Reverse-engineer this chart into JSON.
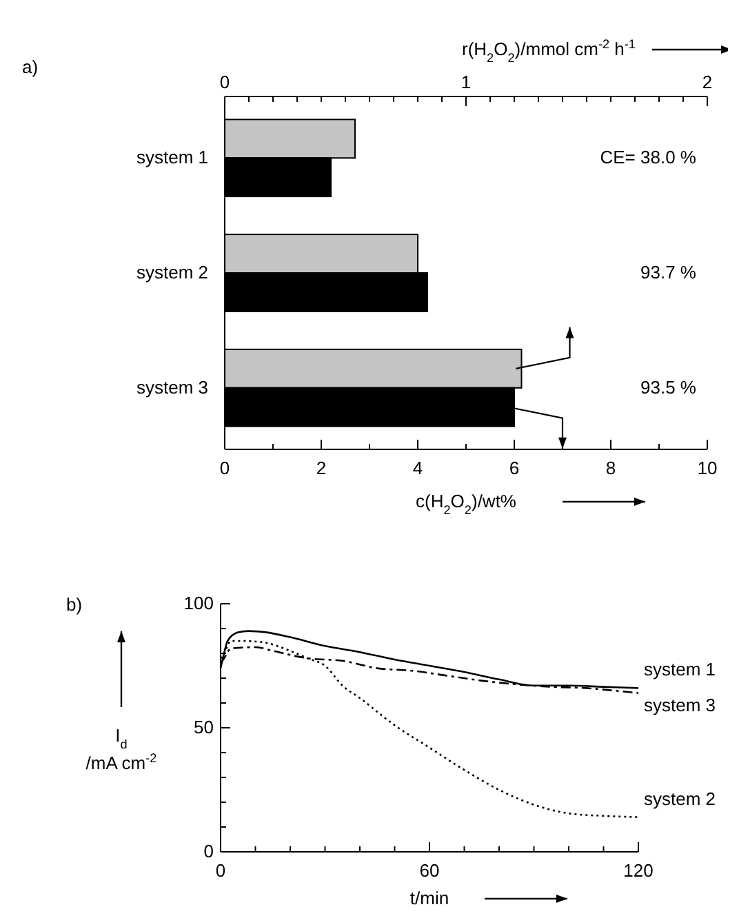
{
  "chart_data": [
    {
      "type": "bar",
      "orientation": "horizontal",
      "categories": [
        "system 1",
        "system 2",
        "system 3"
      ],
      "series": [
        {
          "color": "#c4c4c4",
          "axis": "x2",
          "values": [
            0.54,
            0.8,
            1.23
          ]
        },
        {
          "color": "#000000",
          "values": [
            2.2,
            4.2,
            6.0
          ]
        }
      ],
      "xlim": [
        0,
        10
      ],
      "xticks": [
        0,
        {
          "value": 1,
          "label": null
        },
        2,
        {
          "value": 3,
          "label": null
        },
        4,
        {
          "value": 5,
          "label": null
        },
        6,
        {
          "value": 7,
          "label": null
        },
        8,
        {
          "value": 9,
          "label": null
        },
        10
      ],
      "x2lim": [
        0,
        2
      ],
      "x2ticks": [
        0,
        {
          "value": 0.1,
          "label": null
        },
        {
          "value": 0.2,
          "label": null
        },
        {
          "value": 0.3,
          "label": null
        },
        {
          "value": 0.4,
          "label": null
        },
        {
          "value": 0.5,
          "label": null
        },
        {
          "value": 0.6,
          "label": null
        },
        {
          "value": 0.7,
          "label": null
        },
        {
          "value": 0.8,
          "label": null
        },
        {
          "value": 0.9,
          "label": null
        },
        1,
        {
          "value": 1.1,
          "label": null
        },
        {
          "value": 1.2,
          "label": null
        },
        {
          "value": 1.3,
          "label": null
        },
        {
          "value": 1.4,
          "label": null
        },
        {
          "value": 1.5,
          "label": null
        },
        {
          "value": 1.6,
          "label": null
        },
        {
          "value": 1.7,
          "label": null
        },
        {
          "value": 1.8,
          "label": null
        },
        {
          "value": 1.9,
          "label": null
        },
        2
      ],
      "xlabel": "c(H$_{2}$O$_{2}$)/wt%",
      "x2label": "r(H$_{2}$O$_{2}$)/mmol cm$^{-2}$ h$^{-1}$",
      "title": "a)",
      "annotations": [
        "CE= 38.0 %",
        "93.7 %",
        "93.5 %"
      ]
    },
    {
      "type": "line",
      "title": "b)",
      "xlabel": "t/min",
      "ylabel": "I$_{d}$ /mA cm$^{-2}$",
      "xlim": [
        0,
        120
      ],
      "xticks": [
        0,
        {
          "value": 10,
          "label": null
        },
        {
          "value": 20,
          "label": null
        },
        {
          "value": 30,
          "label": null
        },
        {
          "value": 40,
          "label": null
        },
        {
          "value": 50,
          "label": null
        },
        60,
        {
          "value": 70,
          "label": null
        },
        {
          "value": 80,
          "label": null
        },
        {
          "value": 90,
          "label": null
        },
        {
          "value": 100,
          "label": null
        },
        {
          "value": 110,
          "label": null
        },
        120
      ],
      "ylim": [
        0,
        100
      ],
      "yticks": [
        0,
        {
          "value": 10,
          "label": null
        },
        {
          "value": 20,
          "label": null
        },
        {
          "value": 30,
          "label": null
        },
        {
          "value": 40,
          "label": null
        },
        50,
        {
          "value": 60,
          "label": null
        },
        {
          "value": 70,
          "label": null
        },
        {
          "value": 80,
          "label": null
        },
        {
          "value": 90,
          "label": null
        },
        100
      ],
      "series": [
        {
          "name": "system 1",
          "color": "#000000",
          "line_style": "solid",
          "x": [
            0,
            1,
            2,
            5,
            8,
            13,
            20,
            30,
            40,
            50,
            60,
            70,
            80,
            90,
            100,
            110,
            120
          ],
          "values": [
            74,
            80,
            85,
            88.5,
            89,
            88.5,
            86.5,
            83,
            80.5,
            77.5,
            75,
            72.5,
            69.5,
            67,
            67,
            66.5,
            66
          ]
        },
        {
          "name": "system 3",
          "color": "#000000",
          "line_style": "dashed",
          "x": [
            0,
            1,
            3,
            10,
            15,
            25,
            35,
            45,
            55,
            65,
            75,
            85,
            95,
            105,
            113,
            120
          ],
          "values": [
            76,
            78,
            82,
            82.5,
            81,
            78,
            77,
            74,
            73,
            71,
            69,
            67.5,
            66.5,
            66,
            65,
            64
          ]
        },
        {
          "name": "system 2",
          "color": "#000000",
          "line_style": "dotted",
          "x": [
            0,
            1,
            3,
            6,
            12,
            20,
            25,
            30,
            35,
            40,
            50,
            60,
            70,
            80,
            90,
            100,
            110,
            120
          ],
          "values": [
            78,
            80,
            85,
            85,
            84.5,
            81,
            78,
            75,
            67,
            62,
            51,
            42,
            33,
            25,
            19,
            15.5,
            14.5,
            14
          ]
        }
      ],
      "marker": "none"
    }
  ]
}
